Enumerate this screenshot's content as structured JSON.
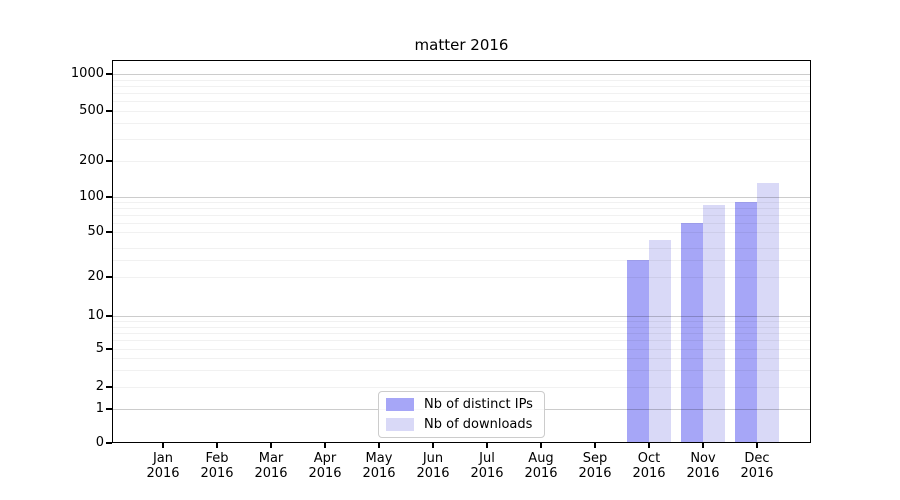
{
  "chart_data": {
    "type": "bar",
    "title": "matter 2016",
    "categories": [
      "Jan",
      "Feb",
      "Mar",
      "Apr",
      "May",
      "Jun",
      "Jul",
      "Aug",
      "Sep",
      "Oct",
      "Nov",
      "Dec"
    ],
    "year_label": "2016",
    "series": [
      {
        "name": "Nb of distinct IPs",
        "color": "#a6a6f7",
        "values": [
          0,
          0,
          0,
          0,
          0,
          0,
          0,
          0,
          0,
          30,
          60,
          90
        ]
      },
      {
        "name": "Nb of downloads",
        "color": "#d9d9f7",
        "values": [
          0,
          0,
          0,
          0,
          0,
          0,
          0,
          0,
          0,
          45,
          85,
          130
        ]
      }
    ],
    "yaxis": {
      "scale": "symlog",
      "tick_values": [
        0,
        1,
        2,
        5,
        10,
        20,
        50,
        100,
        200,
        500,
        1000
      ],
      "tick_labels": [
        "0",
        "1",
        "2",
        "5",
        "10",
        "20",
        "50",
        "100",
        "200",
        "500",
        "1000"
      ],
      "major_grid_values": [
        1,
        10,
        100,
        1000
      ],
      "minor_grid_values": [
        2,
        3,
        4,
        5,
        6,
        7,
        8,
        9,
        20,
        30,
        40,
        50,
        60,
        70,
        80,
        90,
        200,
        300,
        400,
        500,
        600,
        700,
        800,
        900
      ],
      "ylim": [
        0,
        1300
      ]
    },
    "grid": "both, drawn above bars",
    "legend_position": "lower center inside plot",
    "colors": {
      "frame": "#000000",
      "grid_major": "#c6c6c6",
      "grid_minor": "#f0f0f0"
    }
  }
}
